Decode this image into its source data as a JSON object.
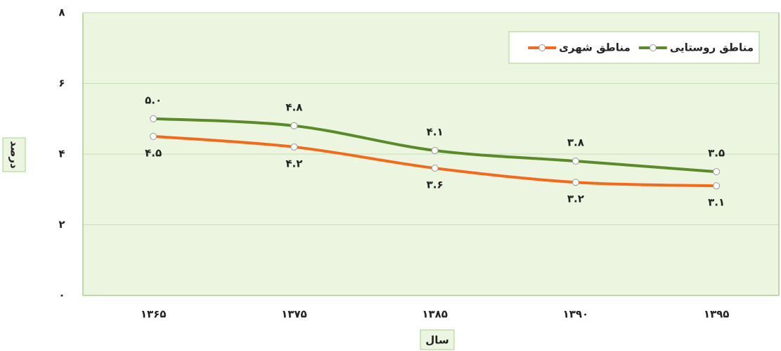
{
  "chart_data": {
    "type": "line",
    "categories": [
      "۱۳۶۵",
      "۱۳۷۵",
      "۱۳۸۵",
      "۱۳۹۰",
      "۱۳۹۵"
    ],
    "series": [
      {
        "name": "مناطق روستایی",
        "color": "#5a8a2a",
        "values": [
          5.0,
          4.8,
          4.1,
          3.8,
          3.5
        ],
        "value_labels": [
          "۵.۰",
          "۴.۸",
          "۴.۱",
          "۳.۸",
          "۳.۵"
        ]
      },
      {
        "name": "مناطق شهری",
        "color": "#f26b1d",
        "values": [
          4.5,
          4.2,
          3.6,
          3.2,
          3.1
        ],
        "value_labels": [
          "۴.۵",
          "۴.۲",
          "۳.۶",
          "۳.۲",
          "۳.۱"
        ]
      }
    ],
    "xlabel": "سال",
    "ylabel": "درصد",
    "ylim": [
      0,
      8
    ],
    "yticks": [
      {
        "value": 0,
        "label": "۰"
      },
      {
        "value": 2,
        "label": "۲"
      },
      {
        "value": 4,
        "label": "۴"
      },
      {
        "value": 6,
        "label": "۶"
      },
      {
        "value": 8,
        "label": "۸"
      }
    ],
    "grid": true,
    "legend": "top-right"
  }
}
